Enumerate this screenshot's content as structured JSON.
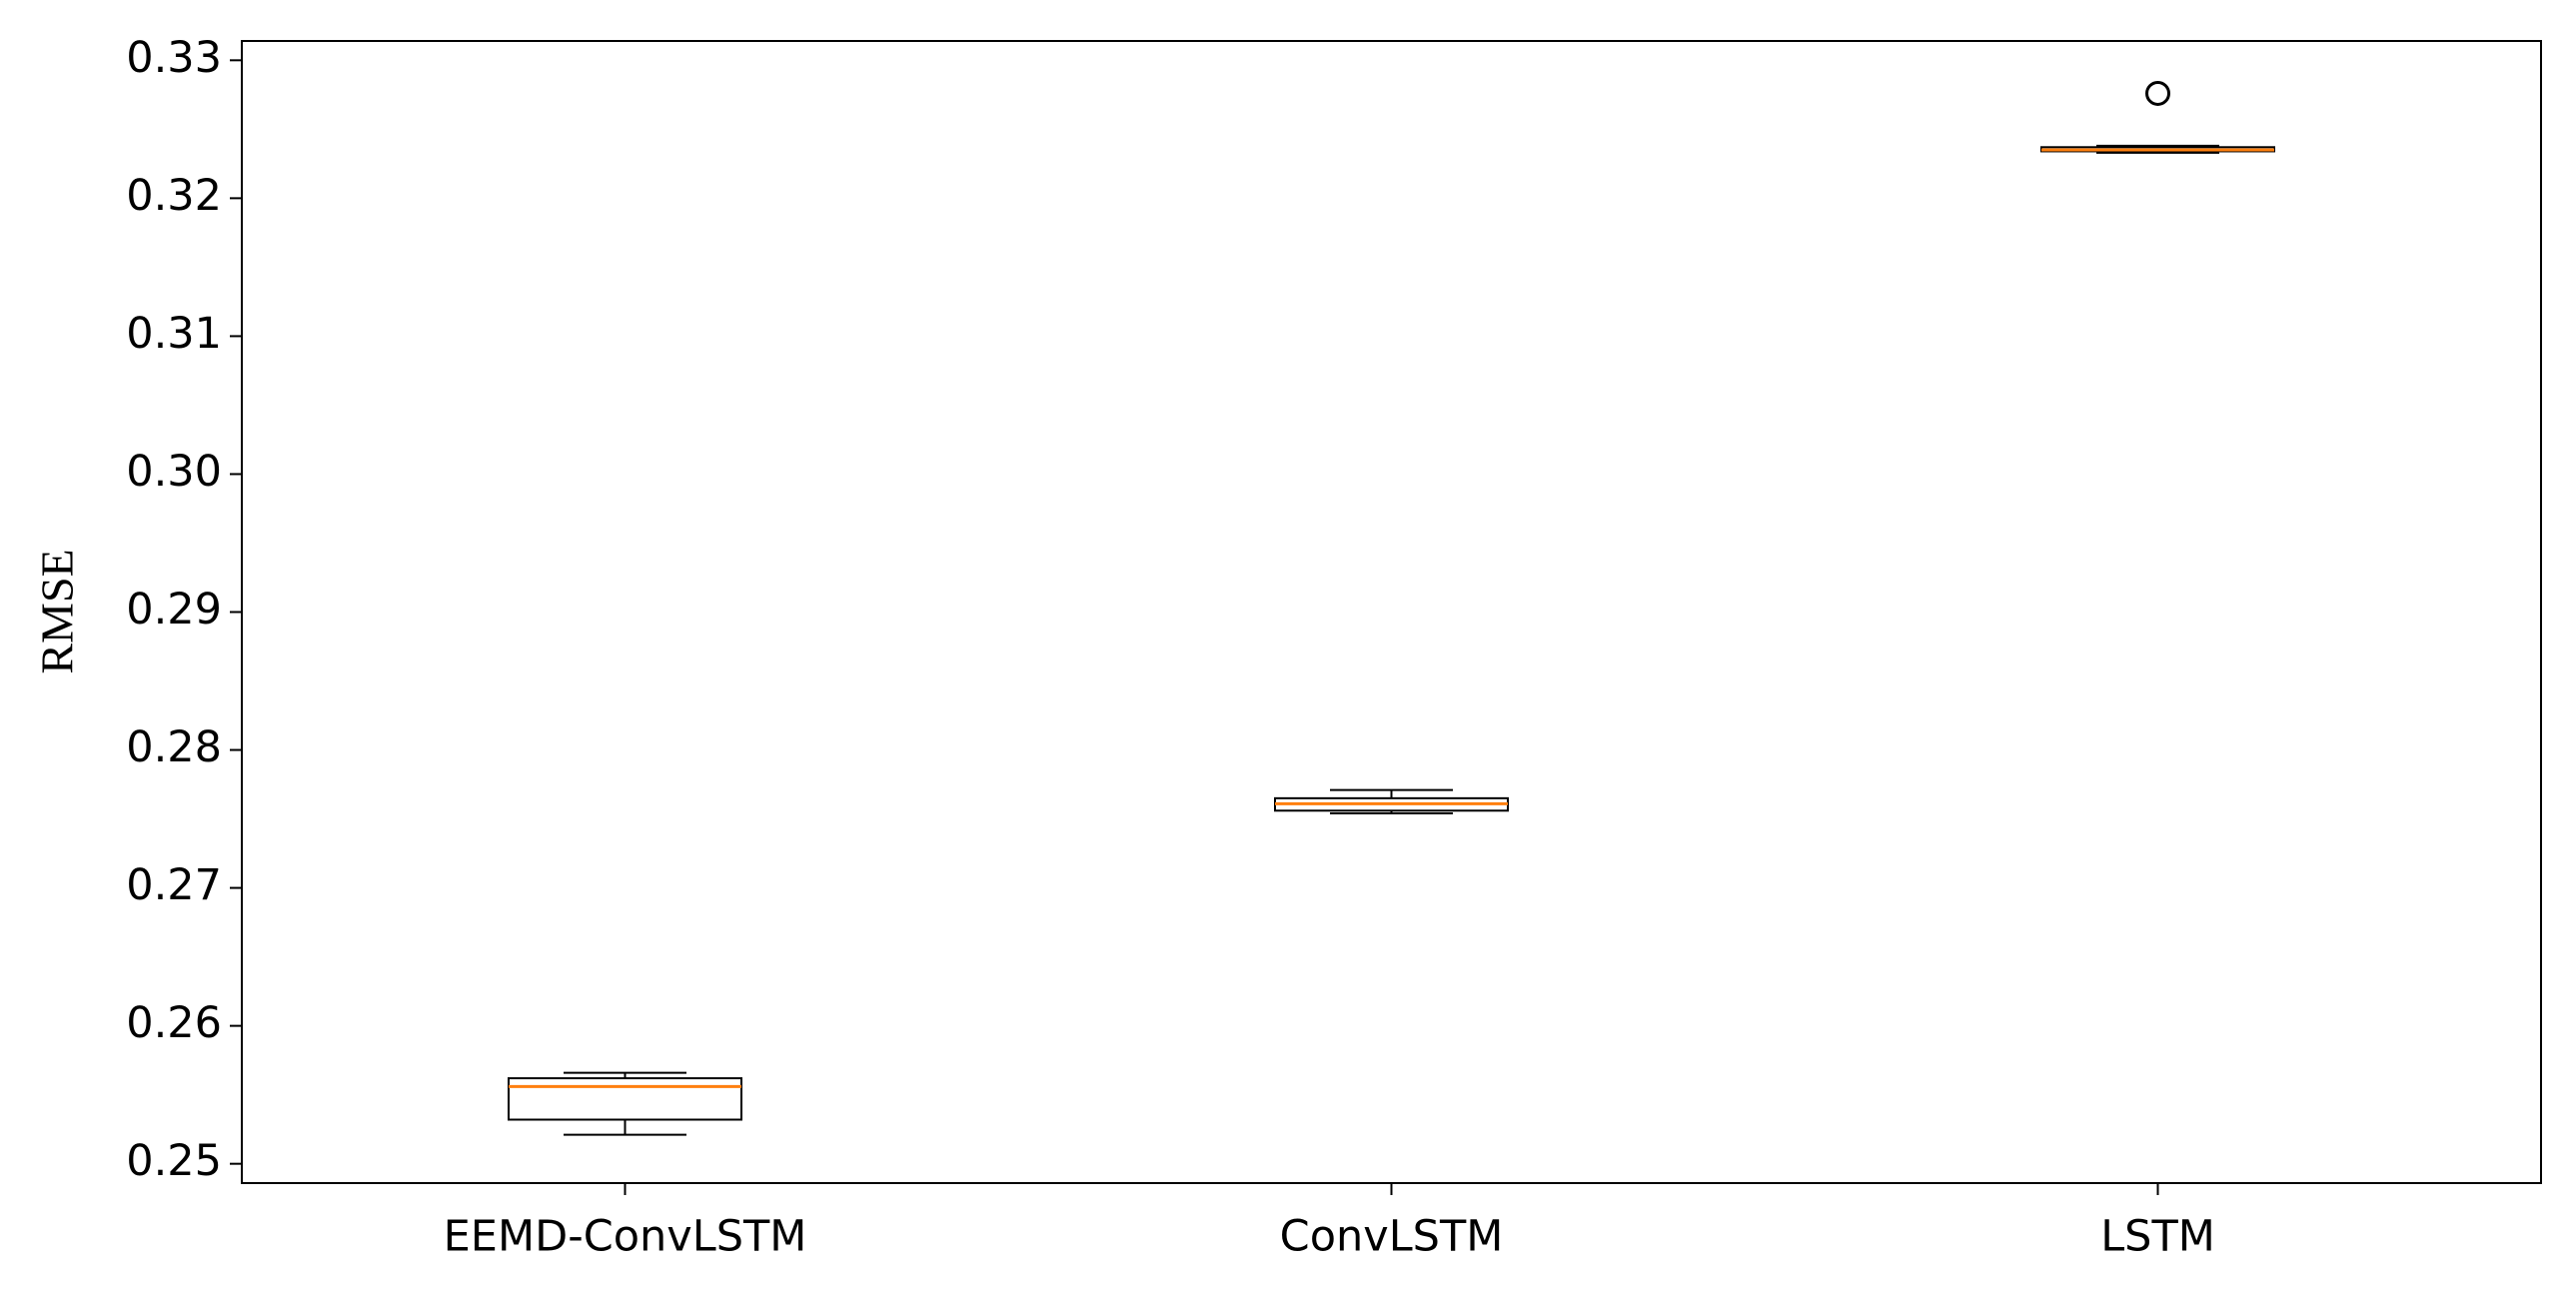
{
  "chart_data": {
    "type": "box",
    "y_label": "RMSE",
    "categories": [
      "EEMD-ConvLSTM",
      "ConvLSTM",
      "LSTM"
    ],
    "boxes": [
      {
        "whislo": 0.2521,
        "q1": 0.2532,
        "med": 0.2556,
        "q3": 0.2562,
        "whishi": 0.2566
      },
      {
        "whislo": 0.2754,
        "q1": 0.2756,
        "med": 0.2761,
        "q3": 0.2765,
        "whishi": 0.2771
      },
      {
        "whislo": 0.3233,
        "q1": 0.3234,
        "med": 0.3235,
        "q3": 0.3237,
        "whishi": 0.3238,
        "fliers": [
          0.3276
        ]
      }
    ],
    "box_color": "#000000",
    "median_color": "#ff7f0e",
    "ylim": [
      0.2486,
      0.3314
    ],
    "yticks": [
      {
        "value": 0.25,
        "label": "0.25"
      },
      {
        "value": 0.26,
        "label": "0.26"
      },
      {
        "value": 0.27,
        "label": "0.27"
      },
      {
        "value": 0.28,
        "label": "0.28"
      },
      {
        "value": 0.29,
        "label": "0.29"
      },
      {
        "value": 0.3,
        "label": "0.30"
      },
      {
        "value": 0.31,
        "label": "0.31"
      },
      {
        "value": 0.32,
        "label": "0.32"
      },
      {
        "value": 0.33,
        "label": "0.33"
      }
    ]
  }
}
